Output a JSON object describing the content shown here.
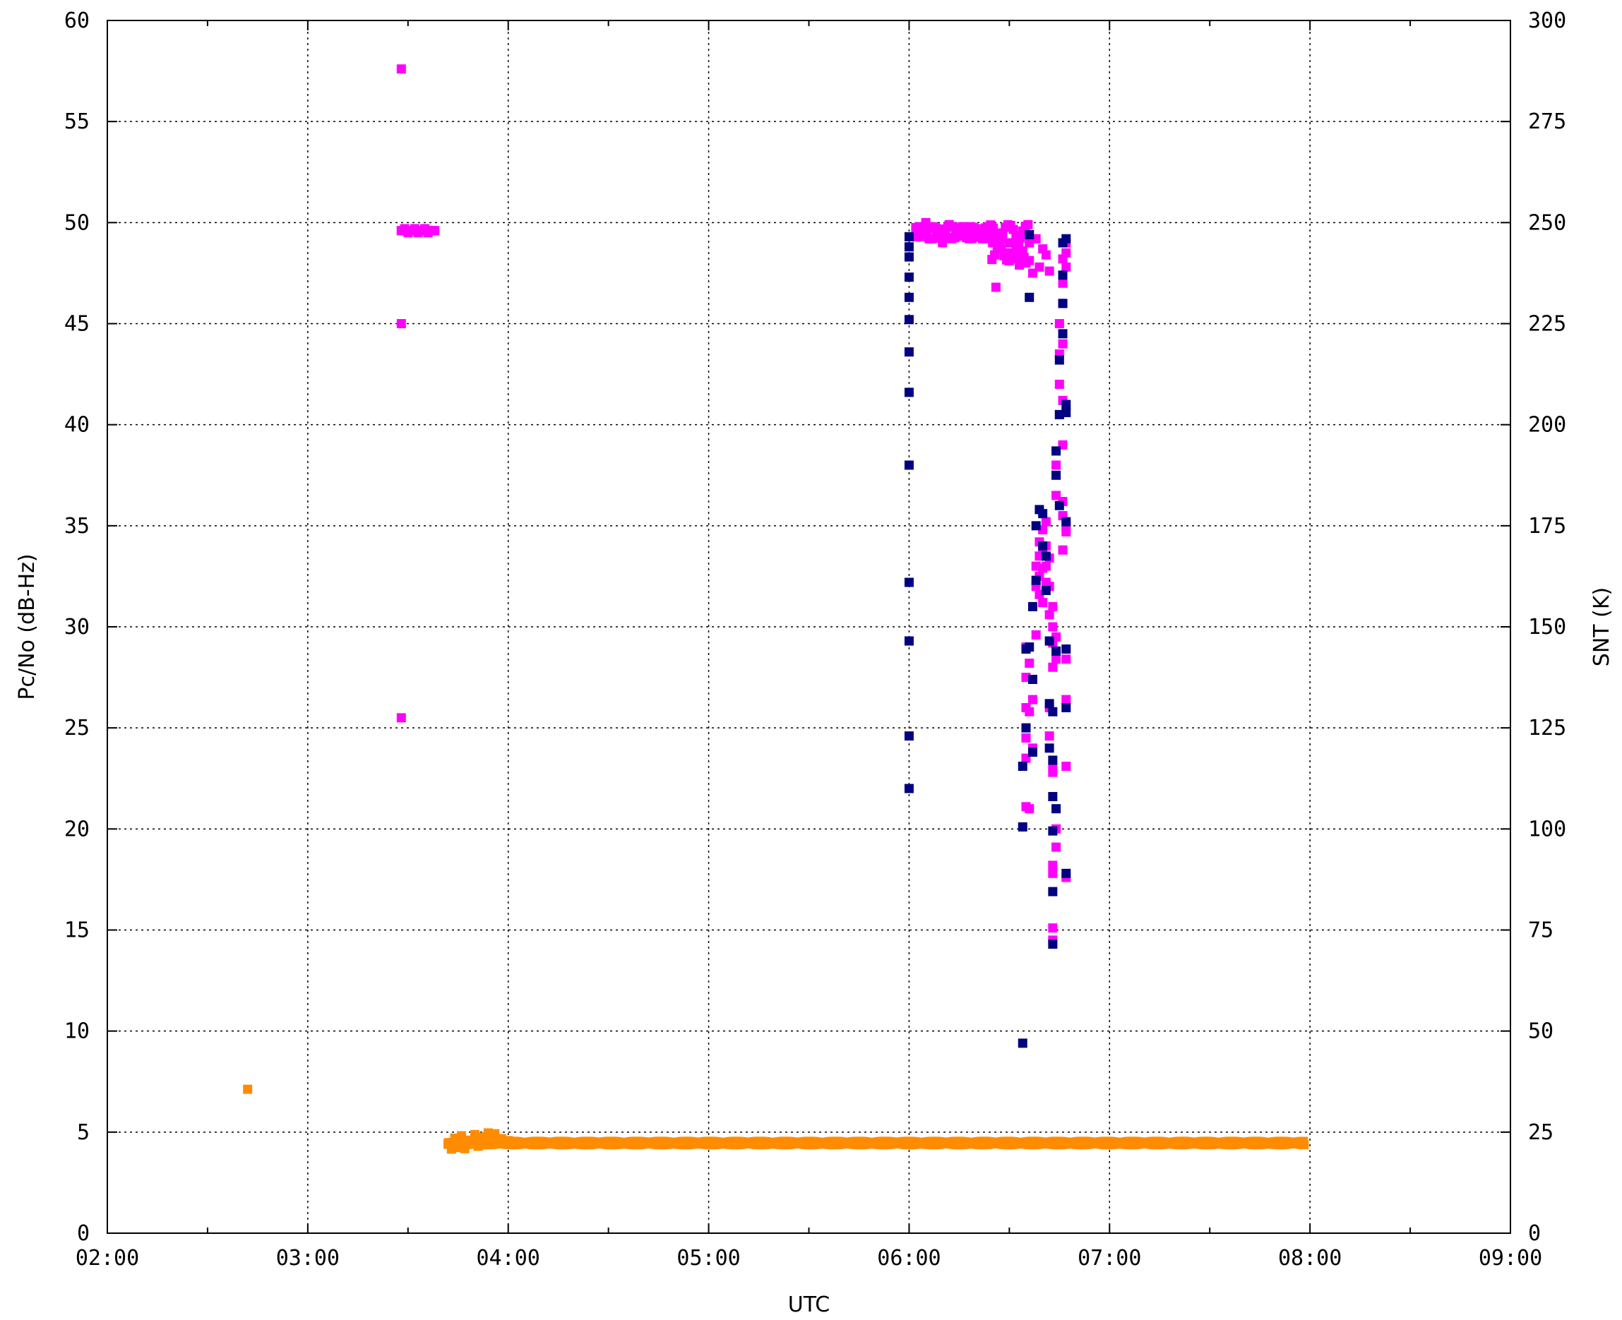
{
  "chart_data": {
    "type": "scatter",
    "title": "",
    "xlabel": "UTC",
    "ylabel": "Pc/No (dB-Hz)",
    "y2label": "SNT (K)",
    "grid": true,
    "xlim": [
      "02:00",
      "09:00"
    ],
    "ylim": [
      0,
      60
    ],
    "y2lim": [
      0,
      300
    ],
    "x_ticks": [
      "02:00",
      "03:00",
      "04:00",
      "05:00",
      "06:00",
      "07:00",
      "08:00",
      "09:00"
    ],
    "y_ticks": [
      0,
      5,
      10,
      15,
      20,
      25,
      30,
      35,
      40,
      45,
      50,
      55,
      60
    ],
    "y2_ticks": [
      0,
      25,
      50,
      75,
      100,
      125,
      150,
      175,
      200,
      225,
      250,
      275,
      300
    ],
    "series": [
      {
        "color": "#ff00ff",
        "axis": "left",
        "points": [
          [
            "03:28",
            57.6
          ],
          [
            "03:28",
            45.0
          ],
          [
            "03:28",
            25.5
          ],
          [
            "03:28",
            49.6
          ],
          [
            "03:29",
            49.7
          ],
          [
            "03:30",
            49.5
          ],
          [
            "03:31",
            49.6
          ],
          [
            "03:32",
            49.7
          ],
          [
            "03:33",
            49.5
          ],
          [
            "03:34",
            49.6
          ],
          [
            "03:35",
            49.7
          ],
          [
            "03:36",
            49.5
          ],
          [
            "03:37",
            49.6
          ],
          [
            "03:38",
            49.6
          ],
          [
            "06:03",
            49.8
          ],
          [
            "06:04",
            49.4
          ],
          [
            "06:05",
            50.0
          ],
          [
            "06:06",
            49.2
          ],
          [
            "06:08",
            49.7
          ],
          [
            "06:10",
            49.0
          ],
          [
            "06:12",
            49.9
          ],
          [
            "06:14",
            49.3
          ],
          [
            "06:16",
            49.8
          ],
          [
            "06:18",
            49.5
          ],
          [
            "06:20",
            49.7
          ],
          [
            "06:22",
            49.2
          ],
          [
            "06:24",
            49.6
          ],
          [
            "06:25",
            49.0
          ],
          [
            "06:26",
            49.4
          ],
          [
            "06:27",
            48.7
          ],
          [
            "06:28",
            49.2
          ],
          [
            "06:29",
            48.5
          ],
          [
            "06:30",
            49.0
          ],
          [
            "06:31",
            48.2
          ],
          [
            "06:32",
            48.9
          ],
          [
            "06:33",
            47.9
          ],
          [
            "06:34",
            48.6
          ],
          [
            "06:35",
            48.0
          ],
          [
            "06:36",
            49.0
          ],
          [
            "06:37",
            47.5
          ],
          [
            "06:38",
            49.2
          ],
          [
            "06:39",
            47.8
          ],
          [
            "06:40",
            48.7
          ],
          [
            "06:41",
            48.4
          ],
          [
            "06:42",
            47.6
          ],
          [
            "06:26",
            46.8
          ],
          [
            "06:32",
            48.2
          ],
          [
            "06:35",
            29.0
          ],
          [
            "06:35",
            27.5
          ],
          [
            "06:35",
            26.0
          ],
          [
            "06:35",
            24.5
          ],
          [
            "06:35",
            23.5
          ],
          [
            "06:35",
            21.1
          ],
          [
            "06:36",
            28.2
          ],
          [
            "06:36",
            25.8
          ],
          [
            "06:36",
            21.0
          ],
          [
            "06:37",
            24.0
          ],
          [
            "06:37",
            26.4
          ],
          [
            "06:38",
            29.6
          ],
          [
            "06:38",
            33.0
          ],
          [
            "06:38",
            32.0
          ],
          [
            "06:39",
            34.2
          ],
          [
            "06:39",
            33.5
          ],
          [
            "06:39",
            32.5
          ],
          [
            "06:39",
            31.6
          ],
          [
            "06:40",
            34.8
          ],
          [
            "06:40",
            33.8
          ],
          [
            "06:40",
            32.9
          ],
          [
            "06:40",
            31.2
          ],
          [
            "06:41",
            35.2
          ],
          [
            "06:41",
            34.0
          ],
          [
            "06:41",
            33.0
          ],
          [
            "06:41",
            32.2
          ],
          [
            "06:42",
            33.4
          ],
          [
            "06:42",
            32.0
          ],
          [
            "06:42",
            30.6
          ],
          [
            "06:43",
            31.0
          ],
          [
            "06:43",
            30.0
          ],
          [
            "06:43",
            29.2
          ],
          [
            "06:43",
            28.0
          ],
          [
            "06:42",
            26.0
          ],
          [
            "06:42",
            24.6
          ],
          [
            "06:43",
            23.1
          ],
          [
            "06:43",
            22.8
          ],
          [
            "06:43",
            18.2
          ],
          [
            "06:43",
            17.8
          ],
          [
            "06:43",
            15.1
          ],
          [
            "06:43",
            14.5
          ],
          [
            "06:44",
            20.0
          ],
          [
            "06:44",
            19.1
          ],
          [
            "06:44",
            28.4
          ],
          [
            "06:44",
            29.5
          ],
          [
            "06:44",
            36.5
          ],
          [
            "06:44",
            38.0
          ],
          [
            "06:45",
            40.5
          ],
          [
            "06:45",
            42.0
          ],
          [
            "06:45",
            43.5
          ],
          [
            "06:45",
            45.0
          ],
          [
            "06:46",
            47.0
          ],
          [
            "06:46",
            44.0
          ],
          [
            "06:46",
            46.0
          ],
          [
            "06:46",
            48.2
          ],
          [
            "06:46",
            35.5
          ],
          [
            "06:46",
            33.8
          ],
          [
            "06:46",
            36.2
          ],
          [
            "06:47",
            35.0
          ],
          [
            "06:47",
            34.7
          ],
          [
            "06:47",
            49.0
          ],
          [
            "06:47",
            48.5
          ],
          [
            "06:47",
            47.8
          ],
          [
            "06:47",
            26.4
          ],
          [
            "06:47",
            28.4
          ],
          [
            "06:47",
            23.1
          ],
          [
            "06:47",
            17.6
          ],
          [
            "06:46",
            41.2
          ],
          [
            "06:46",
            39.0
          ]
        ]
      },
      {
        "color": "#000080",
        "axis": "left",
        "points": [
          [
            "06:00",
            22.0
          ],
          [
            "06:00",
            24.6
          ],
          [
            "06:00",
            29.3
          ],
          [
            "06:00",
            32.2
          ],
          [
            "06:00",
            38.0
          ],
          [
            "06:00",
            41.6
          ],
          [
            "06:00",
            43.6
          ],
          [
            "06:00",
            45.2
          ],
          [
            "06:00",
            46.3
          ],
          [
            "06:00",
            47.3
          ],
          [
            "06:00",
            48.3
          ],
          [
            "06:00",
            48.8
          ],
          [
            "06:00",
            49.3
          ],
          [
            "06:36",
            49.4
          ],
          [
            "06:36",
            46.3
          ],
          [
            "06:34",
            9.4
          ],
          [
            "06:34",
            20.1
          ],
          [
            "06:34",
            23.1
          ],
          [
            "06:35",
            25.0
          ],
          [
            "06:35",
            28.9
          ],
          [
            "06:36",
            29.0
          ],
          [
            "06:37",
            27.4
          ],
          [
            "06:37",
            23.8
          ],
          [
            "06:37",
            31.0
          ],
          [
            "06:38",
            32.3
          ],
          [
            "06:38",
            35.0
          ],
          [
            "06:39",
            35.8
          ],
          [
            "06:40",
            35.6
          ],
          [
            "06:40",
            34.0
          ],
          [
            "06:41",
            31.8
          ],
          [
            "06:41",
            33.5
          ],
          [
            "06:42",
            29.3
          ],
          [
            "06:42",
            26.2
          ],
          [
            "06:42",
            24.0
          ],
          [
            "06:43",
            25.8
          ],
          [
            "06:43",
            23.4
          ],
          [
            "06:43",
            21.6
          ],
          [
            "06:43",
            19.9
          ],
          [
            "06:43",
            16.9
          ],
          [
            "06:43",
            14.3
          ],
          [
            "06:44",
            21.0
          ],
          [
            "06:44",
            28.8
          ],
          [
            "06:44",
            37.5
          ],
          [
            "06:44",
            38.7
          ],
          [
            "06:45",
            36.0
          ],
          [
            "06:45",
            40.5
          ],
          [
            "06:45",
            43.2
          ],
          [
            "06:46",
            44.5
          ],
          [
            "06:46",
            46.0
          ],
          [
            "06:46",
            47.4
          ],
          [
            "06:46",
            49.0
          ],
          [
            "06:47",
            49.2
          ],
          [
            "06:47",
            41.0
          ],
          [
            "06:47",
            40.6
          ],
          [
            "06:47",
            35.2
          ],
          [
            "06:47",
            28.9
          ],
          [
            "06:47",
            26.0
          ],
          [
            "06:47",
            17.8
          ]
        ]
      },
      {
        "color": "#ff8c00",
        "axis": "right",
        "band": {
          "x_start": "03:42",
          "x_end": "07:58",
          "y_center": 22.3,
          "y_spread": 1.2
        },
        "points": [
          [
            "02:42",
            35.6
          ],
          [
            "03:42",
            22.0
          ],
          [
            "03:43",
            20.8
          ],
          [
            "03:44",
            23.5
          ],
          [
            "03:45",
            21.2
          ],
          [
            "03:46",
            24.1
          ],
          [
            "03:47",
            20.9
          ],
          [
            "03:48",
            23.0
          ],
          [
            "03:49",
            22.2
          ],
          [
            "03:50",
            24.4
          ],
          [
            "03:51",
            21.5
          ],
          [
            "03:52",
            23.8
          ],
          [
            "03:53",
            22.4
          ],
          [
            "03:54",
            24.8
          ],
          [
            "03:55",
            23.6
          ],
          [
            "03:56",
            24.6
          ],
          [
            "03:58",
            23.4
          ],
          [
            "04:00",
            22.9
          ]
        ]
      }
    ]
  }
}
